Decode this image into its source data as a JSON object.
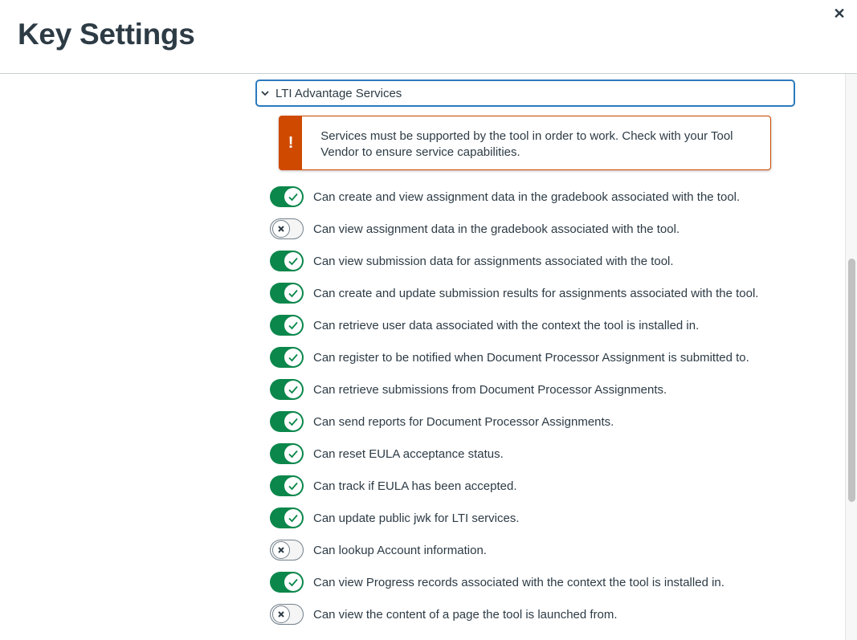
{
  "header": {
    "title": "Key Settings",
    "close_icon": "close-icon"
  },
  "section": {
    "label": "LTI Advantage Services",
    "expanded": true
  },
  "alert": {
    "icon": "!",
    "message": "Services must be supported by the tool in order to work. Check with your Tool Vendor to ensure service capabilities.",
    "color": "#cf4a00"
  },
  "colors": {
    "toggle_on": "#0b874b",
    "focus": "#2b7abc"
  },
  "services": [
    {
      "label": "Can create and view assignment data in the gradebook associated with the tool.",
      "enabled": true
    },
    {
      "label": "Can view assignment data in the gradebook associated with the tool.",
      "enabled": false
    },
    {
      "label": "Can view submission data for assignments associated with the tool.",
      "enabled": true
    },
    {
      "label": "Can create and update submission results for assignments associated with the tool.",
      "enabled": true
    },
    {
      "label": "Can retrieve user data associated with the context the tool is installed in.",
      "enabled": true
    },
    {
      "label": "Can register to be notified when Document Processor Assignment is submitted to.",
      "enabled": true
    },
    {
      "label": "Can retrieve submissions from Document Processor Assignments.",
      "enabled": true
    },
    {
      "label": "Can send reports for Document Processor Assignments.",
      "enabled": true
    },
    {
      "label": "Can reset EULA acceptance status.",
      "enabled": true
    },
    {
      "label": "Can track if EULA has been accepted.",
      "enabled": true
    },
    {
      "label": "Can update public jwk for LTI services.",
      "enabled": true
    },
    {
      "label": "Can lookup Account information.",
      "enabled": false
    },
    {
      "label": "Can view Progress records associated with the context the tool is installed in.",
      "enabled": true
    },
    {
      "label": "Can view the content of a page the tool is launched from.",
      "enabled": false
    }
  ]
}
